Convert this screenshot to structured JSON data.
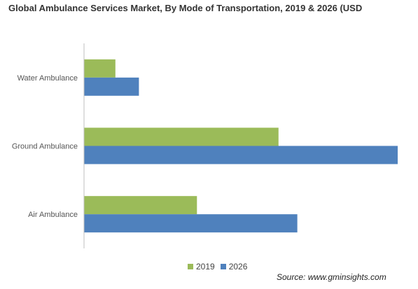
{
  "title": "Global Ambulance Services Market, By Mode of Transportation, 2019 & 2026 (USD",
  "source": "Source: www.gminsights.com",
  "colors": {
    "series_2019": "#9bbb59",
    "series_2026": "#4f81bd",
    "axis": "#bfbfbf"
  },
  "chart_data": {
    "type": "bar",
    "orientation": "horizontal",
    "title": "Global Ambulance Services Market, By Mode of Transportation, 2019 & 2026 (USD",
    "categories": [
      "Water Ambulance",
      "Ground Ambulance",
      "Air Ambulance"
    ],
    "series": [
      {
        "name": "2019",
        "values": [
          10,
          62,
          36
        ]
      },
      {
        "name": "2026",
        "values": [
          17.5,
          100,
          68
        ]
      }
    ],
    "xlim": [
      0,
      100
    ],
    "grid": false,
    "legend_position": "bottom"
  }
}
